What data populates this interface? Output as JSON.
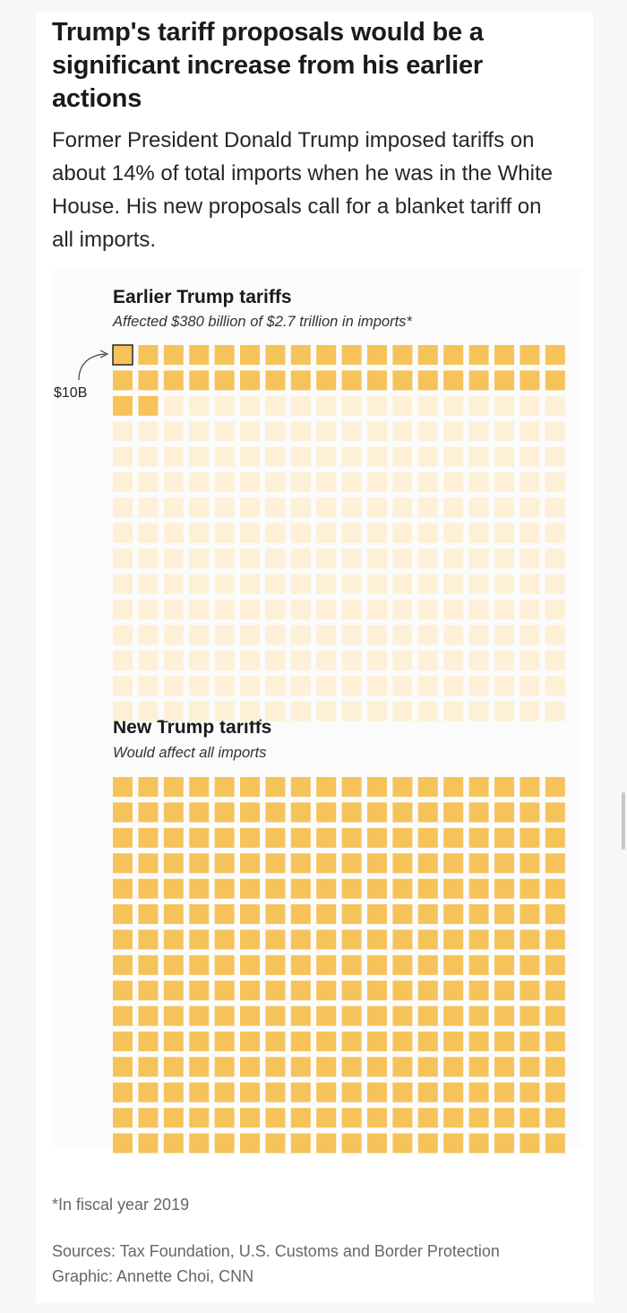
{
  "title": "Trump's tariff proposals would be a significant increase from his earlier actions",
  "subtitle": "Former President Donald Trump imposed tariffs on about 14% of total imports when he was in the White House. His new proposals call for a blanket tariff on all imports.",
  "footnote": "*In fiscal year 2019",
  "sources": "Sources: Tax Foundation, U.S. Customs and Border Protection",
  "credit": "Graphic: Annette Choi, CNN",
  "colors": {
    "filled": "#f6c35a",
    "unfilled": "#fdf0d6",
    "highlight_border": "#333333"
  },
  "chart_data": [
    {
      "type": "waffle",
      "title": "Earlier Trump tariffs",
      "subtitle": "Affected $380 billion of $2.7 trillion in imports*",
      "unit_label": "$10B",
      "unit_value_billion": 10,
      "columns": 18,
      "total_squares": 270,
      "filled_squares": 38
    },
    {
      "type": "waffle",
      "title": "New Trump tariffs",
      "subtitle": "Would affect all imports",
      "columns": 18,
      "total_squares": 270,
      "filled_squares": 270
    }
  ]
}
